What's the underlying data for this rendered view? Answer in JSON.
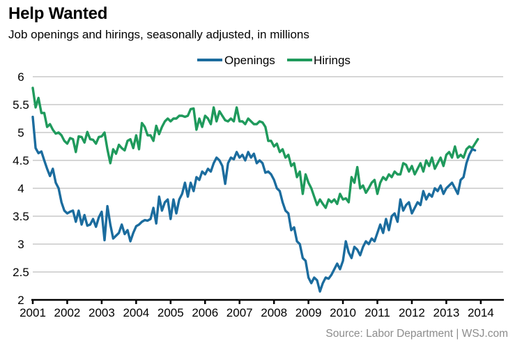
{
  "title": "Help Wanted",
  "subtitle": "Job openings and hirings, seasonally adjusted, in millions",
  "source": "Source: Labor Department  |  WSJ.com",
  "chart_data": {
    "type": "line",
    "title": "Help Wanted",
    "subtitle": "Job openings and hirings, seasonally adjusted, in millions",
    "xlabel": "",
    "ylabel": "",
    "x_start": "2000-12",
    "x_frequency": "monthly",
    "xlim": [
      2001,
      2014.65
    ],
    "ylim": [
      2,
      6
    ],
    "grid": true,
    "legend": "top-center",
    "x_ticks": [
      "2001",
      "2002",
      "2003",
      "2004",
      "2005",
      "2006",
      "2007",
      "2008",
      "2009",
      "2010",
      "2011",
      "2012",
      "2013",
      "2014"
    ],
    "y_ticks": [
      "2",
      "2.5",
      "3",
      "3.5",
      "4",
      "4.5",
      "5",
      "5.5",
      "6"
    ],
    "colors": {
      "Openings": "#1b6c9e",
      "Hirings": "#1f9a5c",
      "grid": "#c8c8c8",
      "axis": "#000000"
    },
    "series": [
      {
        "name": "Openings",
        "values": [
          5.28,
          4.72,
          4.63,
          4.66,
          4.5,
          4.35,
          4.22,
          4.35,
          4.1,
          4.0,
          3.75,
          3.6,
          3.55,
          3.58,
          3.6,
          3.4,
          3.6,
          3.35,
          3.52,
          3.33,
          3.35,
          3.45,
          3.31,
          3.48,
          3.58,
          3.07,
          3.68,
          3.35,
          3.1,
          3.15,
          3.2,
          3.35,
          3.18,
          3.25,
          3.05,
          3.2,
          3.32,
          3.35,
          3.4,
          3.43,
          3.42,
          3.45,
          3.65,
          3.37,
          3.85,
          3.6,
          3.75,
          3.8,
          3.45,
          3.8,
          3.55,
          3.8,
          3.9,
          4.1,
          3.85,
          4.1,
          3.95,
          4.2,
          4.15,
          4.3,
          4.25,
          4.35,
          4.3,
          4.45,
          4.55,
          4.5,
          4.4,
          4.08,
          4.45,
          4.55,
          4.52,
          4.65,
          4.55,
          4.6,
          4.5,
          4.65,
          4.55,
          4.62,
          4.45,
          4.5,
          4.45,
          4.28,
          4.3,
          4.25,
          4.15,
          4.0,
          3.95,
          3.75,
          3.6,
          3.55,
          3.25,
          3.3,
          3.05,
          3.0,
          2.75,
          2.7,
          2.4,
          2.3,
          2.4,
          2.35,
          2.15,
          2.3,
          2.4,
          2.38,
          2.45,
          2.55,
          2.65,
          2.55,
          2.7,
          3.05,
          2.85,
          2.75,
          2.95,
          2.9,
          2.8,
          2.95,
          3.05,
          3.0,
          3.1,
          3.05,
          3.2,
          3.35,
          3.2,
          3.45,
          3.25,
          3.5,
          3.55,
          3.4,
          3.8,
          3.6,
          3.7,
          3.75,
          3.55,
          3.65,
          3.75,
          3.7,
          3.95,
          3.8,
          3.9,
          3.85,
          4.0,
          3.95,
          4.05,
          3.9,
          4.0,
          4.05,
          4.1,
          4.0,
          3.9,
          4.15,
          4.2,
          4.45,
          4.6,
          4.7,
          4.68
        ]
      },
      {
        "name": "Hirings",
        "values": [
          5.8,
          5.45,
          5.62,
          5.35,
          5.35,
          5.1,
          5.15,
          5.05,
          4.98,
          5.0,
          4.95,
          4.85,
          4.8,
          4.9,
          4.88,
          4.65,
          4.93,
          4.92,
          4.82,
          5.01,
          4.88,
          4.87,
          4.8,
          4.92,
          4.93,
          5.0,
          4.7,
          4.45,
          4.7,
          4.62,
          4.78,
          4.72,
          4.68,
          4.85,
          4.88,
          4.72,
          4.95,
          4.7,
          5.17,
          5.1,
          4.95,
          4.95,
          4.85,
          5.12,
          4.97,
          5.1,
          5.2,
          5.25,
          5.2,
          5.25,
          5.25,
          5.3,
          5.3,
          5.28,
          5.3,
          5.42,
          5.43,
          5.05,
          5.25,
          5.1,
          5.3,
          5.25,
          5.15,
          5.45,
          5.2,
          5.38,
          5.3,
          5.22,
          5.2,
          5.25,
          5.2,
          5.45,
          5.2,
          5.2,
          5.15,
          5.25,
          5.2,
          5.15,
          5.15,
          5.2,
          5.18,
          5.1,
          4.85,
          4.85,
          4.75,
          4.8,
          4.65,
          4.7,
          4.55,
          4.6,
          4.4,
          4.45,
          4.2,
          4.3,
          3.9,
          4.25,
          4.1,
          4.0,
          3.85,
          3.7,
          3.8,
          3.72,
          3.65,
          3.8,
          3.75,
          3.8,
          3.72,
          3.9,
          3.8,
          3.82,
          3.75,
          4.2,
          4.1,
          4.38,
          4.0,
          4.05,
          3.92,
          4.0,
          4.1,
          4.15,
          3.9,
          4.1,
          4.2,
          4.15,
          4.25,
          4.2,
          4.3,
          4.25,
          4.25,
          4.45,
          4.42,
          4.3,
          4.4,
          4.25,
          4.35,
          4.45,
          4.3,
          4.5,
          4.4,
          4.55,
          4.35,
          4.45,
          4.55,
          4.4,
          4.6,
          4.65,
          4.55,
          4.75,
          4.55,
          4.6,
          4.55,
          4.7,
          4.75,
          4.72,
          4.8,
          4.88
        ]
      }
    ]
  }
}
